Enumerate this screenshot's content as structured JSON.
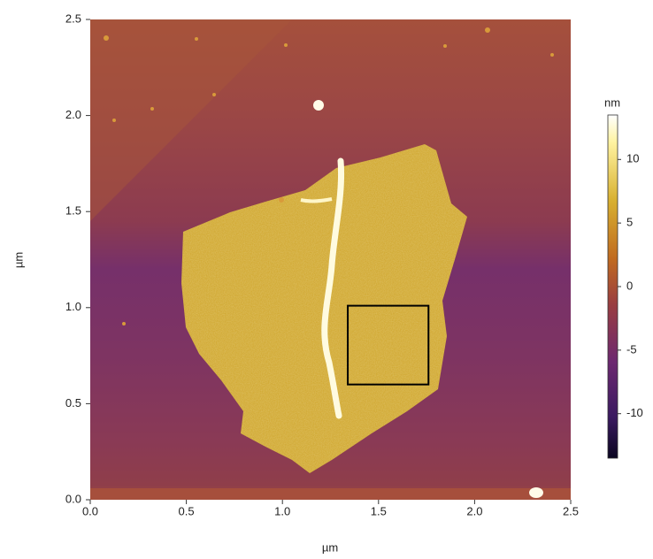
{
  "chart_data": {
    "type": "image",
    "xlabel": "µm",
    "ylabel": "µm",
    "xlim": [
      0,
      2.5
    ],
    "ylim": [
      0,
      2.5
    ],
    "xticks": [
      {
        "value": 0,
        "label": "0.0"
      },
      0.5,
      {
        "value": 1,
        "label": "1.0"
      },
      1.5,
      {
        "value": 2,
        "label": "2.0"
      },
      2.5
    ],
    "yticks": [
      {
        "value": 0,
        "label": "0.0"
      },
      0.5,
      {
        "value": 1,
        "label": "1.0"
      },
      1.5,
      {
        "value": 2,
        "label": "2.0"
      },
      2.5
    ],
    "colorbar": {
      "label": "nm",
      "lim": [
        -13.5,
        13.5
      ],
      "ticks": [
        -10,
        -5,
        0,
        5,
        10
      ]
    },
    "box": {
      "x": [
        1.34,
        1.76
      ],
      "y": [
        0.6,
        1.01
      ],
      "color": "#000000"
    }
  }
}
